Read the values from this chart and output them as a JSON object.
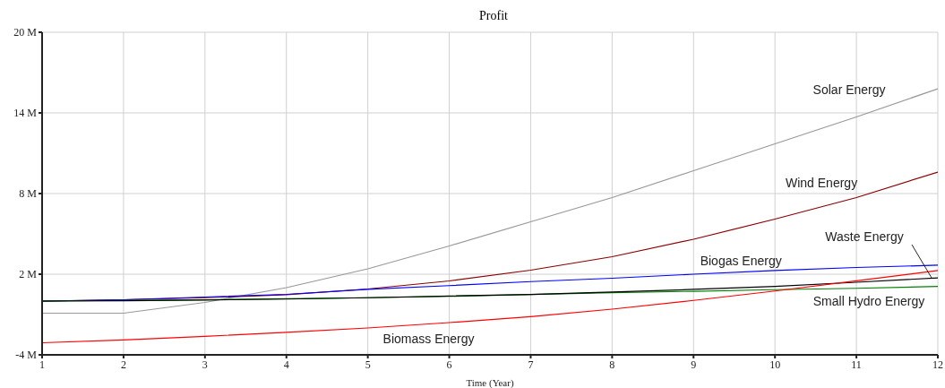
{
  "chart_data": {
    "type": "line",
    "title": "Profit",
    "xlabel": "Time (Year)",
    "x": [
      1,
      2,
      3,
      4,
      5,
      6,
      7,
      8,
      9,
      10,
      11,
      12
    ],
    "xlim": [
      1,
      12
    ],
    "xticks": [
      1,
      2,
      3,
      4,
      5,
      6,
      7,
      8,
      9,
      10,
      11,
      12
    ],
    "ylim": [
      -4,
      20
    ],
    "yticks": [
      {
        "value": -4,
        "label": "-4 M"
      },
      {
        "value": 2,
        "label": "2 M"
      },
      {
        "value": 8,
        "label": "8 M"
      },
      {
        "value": 14,
        "label": "14 M"
      },
      {
        "value": 20,
        "label": "20 M"
      }
    ],
    "grid": true,
    "legend": false,
    "marker": "none",
    "line_style": "solid",
    "series": [
      {
        "name": "Solar Energy",
        "color": "#999999",
        "values": [
          -0.9,
          -0.9,
          -0.1,
          1.0,
          2.4,
          4.1,
          5.9,
          7.7,
          9.7,
          11.7,
          13.7,
          15.8
        ]
      },
      {
        "name": "Wind Energy",
        "color": "#8b0000",
        "values": [
          0,
          0.1,
          0.25,
          0.47,
          0.9,
          1.5,
          2.3,
          3.3,
          4.6,
          6.1,
          7.7,
          9.6
        ]
      },
      {
        "name": "Biogas Energy",
        "color": "#0000ff",
        "values": [
          0,
          0.1,
          0.3,
          0.5,
          0.87,
          1.15,
          1.45,
          1.7,
          2.0,
          2.27,
          2.5,
          2.67
        ]
      },
      {
        "name": "Small Hydro Energy",
        "color": "#008000",
        "values": [
          0,
          0.05,
          0.1,
          0.18,
          0.25,
          0.35,
          0.49,
          0.62,
          0.73,
          0.85,
          0.95,
          1.09
        ]
      },
      {
        "name": "Waste Energy",
        "color": "#000000",
        "values": [
          0,
          0.03,
          0.08,
          0.15,
          0.25,
          0.38,
          0.49,
          0.67,
          0.87,
          1.09,
          1.4,
          1.73
        ]
      },
      {
        "name": "Biomass Energy",
        "color": "#ff0000",
        "values": [
          -3.1,
          -2.89,
          -2.62,
          -2.33,
          -2.0,
          -1.6,
          -1.16,
          -0.6,
          0.05,
          0.75,
          1.51,
          2.27
        ]
      }
    ]
  }
}
